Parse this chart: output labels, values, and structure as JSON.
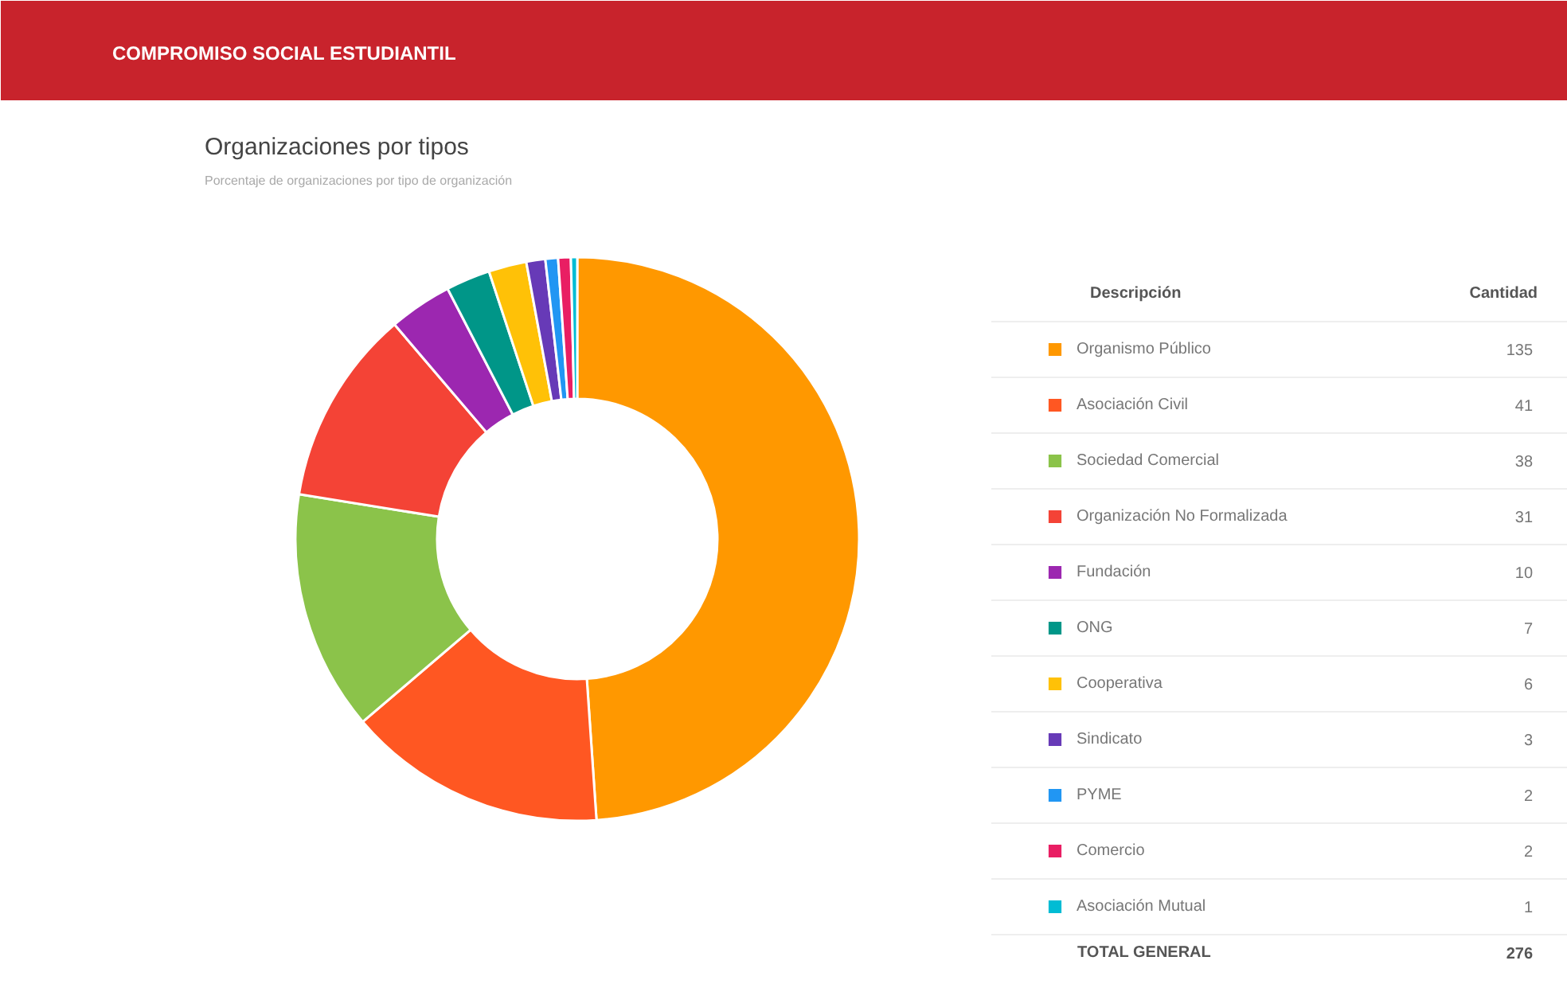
{
  "chart_data": {
    "type": "donut",
    "title": "Organizaciones por tipos",
    "subtitle": "Porcentaje de organizaciones por tipo de organización",
    "categories": [
      "Organismo Público",
      "Asociación Civil",
      "Sociedad Comercial",
      "Organización No Formalizada",
      "Fundación",
      "ONG",
      "Cooperativa",
      "Sindicato",
      "PYME",
      "Comercio",
      "Asociación Mutual"
    ],
    "values": [
      135,
      41,
      38,
      31,
      10,
      7,
      6,
      3,
      2,
      2,
      1
    ],
    "colors": [
      "#ff9800",
      "#ff5722",
      "#8bc34a",
      "#f44336",
      "#9c27b0",
      "#009688",
      "#ffc107",
      "#673ab7",
      "#2196f3",
      "#e91e63",
      "#00bcd4"
    ],
    "data_labels": true,
    "legend": "right",
    "annotations": [
      "COMPROMISO SOCIAL ESTUDIANTIL",
      "Descripción",
      "Cantidad",
      "TOTAL GENERAL",
      "276"
    ]
  }
}
